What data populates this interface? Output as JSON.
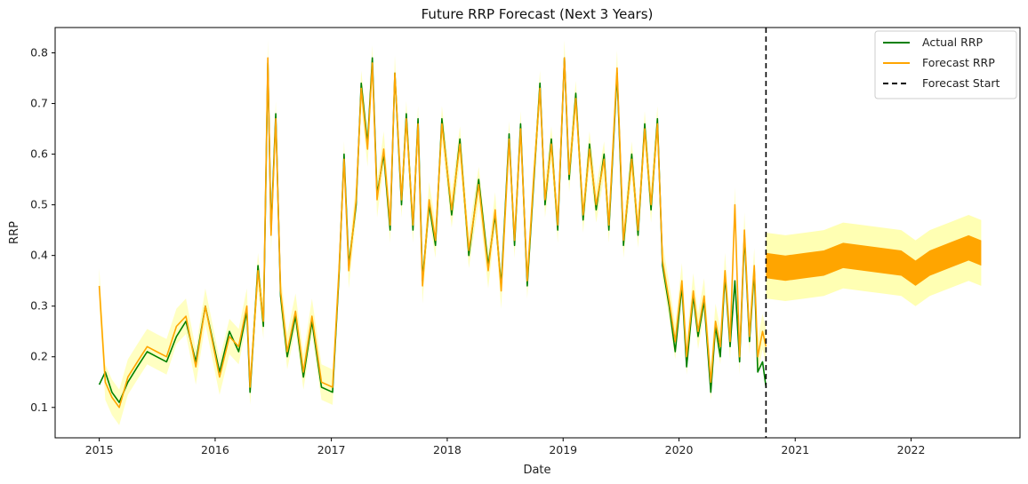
{
  "chart_data": {
    "type": "line",
    "title": "Future RRP Forecast (Next 3 Years)",
    "xlabel": "Date",
    "ylabel": "RRP",
    "x_range": [
      "2014-08-15",
      "2022-12-10"
    ],
    "ylim": [
      0.04,
      0.85
    ],
    "x_ticks": [
      {
        "date": "2015-01-01",
        "label": "2015"
      },
      {
        "date": "2016-01-01",
        "label": "2016"
      },
      {
        "date": "2017-01-01",
        "label": "2017"
      },
      {
        "date": "2018-01-01",
        "label": "2018"
      },
      {
        "date": "2019-01-01",
        "label": "2019"
      },
      {
        "date": "2020-01-01",
        "label": "2020"
      },
      {
        "date": "2021-01-01",
        "label": "2021"
      },
      {
        "date": "2022-01-01",
        "label": "2022"
      }
    ],
    "y_ticks": [
      {
        "value": 0.1,
        "label": "0.1"
      },
      {
        "value": 0.2,
        "label": "0.2"
      },
      {
        "value": 0.3,
        "label": "0.3"
      },
      {
        "value": 0.4,
        "label": "0.4"
      },
      {
        "value": 0.5,
        "label": "0.5"
      },
      {
        "value": 0.6,
        "label": "0.6"
      },
      {
        "value": 0.7,
        "label": "0.7"
      },
      {
        "value": 0.8,
        "label": "0.8"
      }
    ],
    "grid": false,
    "legend_position": "top-right",
    "forecast_start": "2020-10-01",
    "series": [
      {
        "name": "Actual RRP",
        "color": "#008000",
        "style": "solid",
        "points": [
          [
            "2015-01-01",
            0.145
          ],
          [
            "2015-01-20",
            0.17
          ],
          [
            "2015-02-10",
            0.13
          ],
          [
            "2015-03-05",
            0.11
          ],
          [
            "2015-04-01",
            0.15
          ],
          [
            "2015-05-01",
            0.18
          ],
          [
            "2015-06-01",
            0.21
          ],
          [
            "2015-07-01",
            0.2
          ],
          [
            "2015-08-01",
            0.19
          ],
          [
            "2015-09-01",
            0.24
          ],
          [
            "2015-10-01",
            0.27
          ],
          [
            "2015-11-01",
            0.19
          ],
          [
            "2015-12-01",
            0.3
          ],
          [
            "2016-01-15",
            0.17
          ],
          [
            "2016-02-15",
            0.25
          ],
          [
            "2016-03-15",
            0.21
          ],
          [
            "2016-04-10",
            0.29
          ],
          [
            "2016-04-20",
            0.13
          ],
          [
            "2016-05-15",
            0.38
          ],
          [
            "2016-06-01",
            0.26
          ],
          [
            "2016-06-15",
            0.78
          ],
          [
            "2016-06-25",
            0.45
          ],
          [
            "2016-07-10",
            0.68
          ],
          [
            "2016-07-25",
            0.32
          ],
          [
            "2016-08-15",
            0.2
          ],
          [
            "2016-09-10",
            0.28
          ],
          [
            "2016-10-05",
            0.16
          ],
          [
            "2016-11-01",
            0.27
          ],
          [
            "2016-12-01",
            0.14
          ],
          [
            "2017-01-05",
            0.13
          ],
          [
            "2017-01-25",
            0.36
          ],
          [
            "2017-02-10",
            0.6
          ],
          [
            "2017-02-25",
            0.38
          ],
          [
            "2017-03-20",
            0.5
          ],
          [
            "2017-04-05",
            0.74
          ],
          [
            "2017-04-25",
            0.62
          ],
          [
            "2017-05-10",
            0.79
          ],
          [
            "2017-05-25",
            0.52
          ],
          [
            "2017-06-15",
            0.6
          ],
          [
            "2017-07-05",
            0.45
          ],
          [
            "2017-07-20",
            0.76
          ],
          [
            "2017-08-10",
            0.5
          ],
          [
            "2017-08-25",
            0.68
          ],
          [
            "2017-09-15",
            0.45
          ],
          [
            "2017-10-01",
            0.67
          ],
          [
            "2017-10-15",
            0.35
          ],
          [
            "2017-11-05",
            0.5
          ],
          [
            "2017-11-25",
            0.42
          ],
          [
            "2017-12-15",
            0.67
          ],
          [
            "2018-01-15",
            0.48
          ],
          [
            "2018-02-10",
            0.63
          ],
          [
            "2018-03-10",
            0.4
          ],
          [
            "2018-04-10",
            0.55
          ],
          [
            "2018-05-10",
            0.38
          ],
          [
            "2018-06-01",
            0.48
          ],
          [
            "2018-06-20",
            0.34
          ],
          [
            "2018-07-15",
            0.64
          ],
          [
            "2018-08-01",
            0.42
          ],
          [
            "2018-08-20",
            0.66
          ],
          [
            "2018-09-10",
            0.34
          ],
          [
            "2018-10-01",
            0.55
          ],
          [
            "2018-10-20",
            0.74
          ],
          [
            "2018-11-05",
            0.5
          ],
          [
            "2018-11-25",
            0.63
          ],
          [
            "2018-12-15",
            0.45
          ],
          [
            "2019-01-05",
            0.79
          ],
          [
            "2019-01-20",
            0.55
          ],
          [
            "2019-02-10",
            0.72
          ],
          [
            "2019-03-05",
            0.47
          ],
          [
            "2019-03-25",
            0.62
          ],
          [
            "2019-04-15",
            0.49
          ],
          [
            "2019-05-10",
            0.6
          ],
          [
            "2019-05-25",
            0.45
          ],
          [
            "2019-06-20",
            0.76
          ],
          [
            "2019-07-10",
            0.42
          ],
          [
            "2019-08-05",
            0.6
          ],
          [
            "2019-08-25",
            0.44
          ],
          [
            "2019-09-15",
            0.66
          ],
          [
            "2019-10-05",
            0.49
          ],
          [
            "2019-10-25",
            0.67
          ],
          [
            "2019-11-10",
            0.38
          ],
          [
            "2019-12-01",
            0.3
          ],
          [
            "2019-12-20",
            0.21
          ],
          [
            "2020-01-10",
            0.34
          ],
          [
            "2020-01-25",
            0.18
          ],
          [
            "2020-02-15",
            0.32
          ],
          [
            "2020-03-01",
            0.24
          ],
          [
            "2020-03-20",
            0.31
          ],
          [
            "2020-04-10",
            0.13
          ],
          [
            "2020-04-25",
            0.26
          ],
          [
            "2020-05-10",
            0.2
          ],
          [
            "2020-05-25",
            0.36
          ],
          [
            "2020-06-10",
            0.22
          ],
          [
            "2020-06-25",
            0.35
          ],
          [
            "2020-07-10",
            0.19
          ],
          [
            "2020-07-25",
            0.44
          ],
          [
            "2020-08-10",
            0.23
          ],
          [
            "2020-08-25",
            0.37
          ],
          [
            "2020-09-05",
            0.17
          ],
          [
            "2020-09-20",
            0.19
          ],
          [
            "2020-10-01",
            0.14
          ]
        ]
      },
      {
        "name": "Forecast RRP",
        "color": "#FFA500",
        "style": "solid",
        "points": [
          [
            "2015-01-01",
            0.34
          ],
          [
            "2015-01-20",
            0.15
          ],
          [
            "2015-02-10",
            0.12
          ],
          [
            "2015-03-05",
            0.1
          ],
          [
            "2015-04-01",
            0.16
          ],
          [
            "2015-05-01",
            0.19
          ],
          [
            "2015-06-01",
            0.22
          ],
          [
            "2015-07-01",
            0.21
          ],
          [
            "2015-08-01",
            0.2
          ],
          [
            "2015-09-01",
            0.26
          ],
          [
            "2015-10-01",
            0.28
          ],
          [
            "2015-11-01",
            0.18
          ],
          [
            "2015-12-01",
            0.3
          ],
          [
            "2016-01-15",
            0.16
          ],
          [
            "2016-02-15",
            0.24
          ],
          [
            "2016-03-15",
            0.22
          ],
          [
            "2016-04-10",
            0.3
          ],
          [
            "2016-04-20",
            0.14
          ],
          [
            "2016-05-15",
            0.37
          ],
          [
            "2016-06-01",
            0.27
          ],
          [
            "2016-06-15",
            0.79
          ],
          [
            "2016-06-25",
            0.44
          ],
          [
            "2016-07-10",
            0.67
          ],
          [
            "2016-07-25",
            0.33
          ],
          [
            "2016-08-15",
            0.21
          ],
          [
            "2016-09-10",
            0.29
          ],
          [
            "2016-10-05",
            0.17
          ],
          [
            "2016-11-01",
            0.28
          ],
          [
            "2016-12-01",
            0.15
          ],
          [
            "2017-01-05",
            0.14
          ],
          [
            "2017-01-25",
            0.37
          ],
          [
            "2017-02-10",
            0.59
          ],
          [
            "2017-02-25",
            0.37
          ],
          [
            "2017-03-20",
            0.51
          ],
          [
            "2017-04-05",
            0.73
          ],
          [
            "2017-04-25",
            0.61
          ],
          [
            "2017-05-10",
            0.78
          ],
          [
            "2017-05-25",
            0.51
          ],
          [
            "2017-06-15",
            0.61
          ],
          [
            "2017-07-05",
            0.46
          ],
          [
            "2017-07-20",
            0.76
          ],
          [
            "2017-08-10",
            0.51
          ],
          [
            "2017-08-25",
            0.67
          ],
          [
            "2017-09-15",
            0.46
          ],
          [
            "2017-10-01",
            0.66
          ],
          [
            "2017-10-15",
            0.34
          ],
          [
            "2017-11-05",
            0.51
          ],
          [
            "2017-11-25",
            0.43
          ],
          [
            "2017-12-15",
            0.66
          ],
          [
            "2018-01-15",
            0.49
          ],
          [
            "2018-02-10",
            0.62
          ],
          [
            "2018-03-10",
            0.41
          ],
          [
            "2018-04-10",
            0.54
          ],
          [
            "2018-05-10",
            0.37
          ],
          [
            "2018-06-01",
            0.49
          ],
          [
            "2018-06-20",
            0.33
          ],
          [
            "2018-07-15",
            0.63
          ],
          [
            "2018-08-01",
            0.43
          ],
          [
            "2018-08-20",
            0.65
          ],
          [
            "2018-09-10",
            0.35
          ],
          [
            "2018-10-01",
            0.56
          ],
          [
            "2018-10-20",
            0.73
          ],
          [
            "2018-11-05",
            0.51
          ],
          [
            "2018-11-25",
            0.62
          ],
          [
            "2018-12-15",
            0.46
          ],
          [
            "2019-01-05",
            0.79
          ],
          [
            "2019-01-20",
            0.56
          ],
          [
            "2019-02-10",
            0.71
          ],
          [
            "2019-03-05",
            0.48
          ],
          [
            "2019-03-25",
            0.61
          ],
          [
            "2019-04-15",
            0.5
          ],
          [
            "2019-05-10",
            0.59
          ],
          [
            "2019-05-25",
            0.46
          ],
          [
            "2019-06-20",
            0.77
          ],
          [
            "2019-07-10",
            0.43
          ],
          [
            "2019-08-05",
            0.59
          ],
          [
            "2019-08-25",
            0.45
          ],
          [
            "2019-09-15",
            0.65
          ],
          [
            "2019-10-05",
            0.5
          ],
          [
            "2019-10-25",
            0.66
          ],
          [
            "2019-11-10",
            0.39
          ],
          [
            "2019-12-01",
            0.31
          ],
          [
            "2019-12-20",
            0.23
          ],
          [
            "2020-01-10",
            0.35
          ],
          [
            "2020-01-25",
            0.2
          ],
          [
            "2020-02-15",
            0.33
          ],
          [
            "2020-03-01",
            0.25
          ],
          [
            "2020-03-20",
            0.32
          ],
          [
            "2020-04-10",
            0.15
          ],
          [
            "2020-04-25",
            0.27
          ],
          [
            "2020-05-10",
            0.22
          ],
          [
            "2020-05-25",
            0.37
          ],
          [
            "2020-06-10",
            0.23
          ],
          [
            "2020-06-25",
            0.5
          ],
          [
            "2020-07-10",
            0.2
          ],
          [
            "2020-07-25",
            0.45
          ],
          [
            "2020-08-10",
            0.24
          ],
          [
            "2020-08-25",
            0.38
          ],
          [
            "2020-09-05",
            0.2
          ],
          [
            "2020-09-20",
            0.25
          ],
          [
            "2020-10-01",
            0.22
          ]
        ]
      },
      {
        "name": "Forecast Start",
        "color": "#000000",
        "style": "dashed"
      }
    ],
    "future_forecast": {
      "color": "#FFA500",
      "band_color": "#FFFF99",
      "start": "2020-10-01",
      "end": "2022-08-10",
      "center": [
        [
          "2020-10-01",
          0.38
        ],
        [
          "2020-12-01",
          0.375
        ],
        [
          "2021-02-01",
          0.38
        ],
        [
          "2021-04-01",
          0.385
        ],
        [
          "2021-06-01",
          0.4
        ],
        [
          "2021-08-01",
          0.395
        ],
        [
          "2021-10-01",
          0.39
        ],
        [
          "2021-12-01",
          0.385
        ],
        [
          "2022-01-15",
          0.365
        ],
        [
          "2022-03-01",
          0.385
        ],
        [
          "2022-05-01",
          0.4
        ],
        [
          "2022-07-01",
          0.415
        ],
        [
          "2022-08-10",
          0.405
        ]
      ],
      "spread": 0.025,
      "band_spread": 0.065
    }
  }
}
